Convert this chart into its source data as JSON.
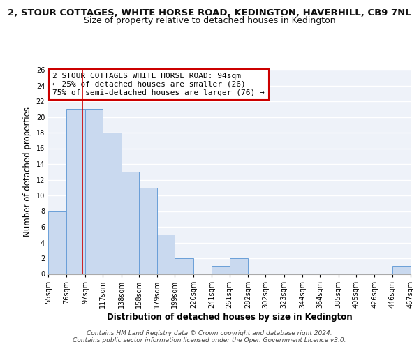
{
  "title_line1": "2, STOUR COTTAGES, WHITE HORSE ROAD, KEDINGTON, HAVERHILL, CB9 7NL",
  "title_line2": "Size of property relative to detached houses in Kedington",
  "xlabel": "Distribution of detached houses by size in Kedington",
  "ylabel": "Number of detached properties",
  "bar_edges": [
    55,
    76,
    97,
    117,
    138,
    158,
    179,
    199,
    220,
    241,
    261,
    282,
    302,
    323,
    344,
    364,
    385,
    405,
    426,
    446,
    467
  ],
  "bar_heights": [
    8,
    21,
    21,
    18,
    13,
    11,
    5,
    2,
    0,
    1,
    2,
    0,
    0,
    0,
    0,
    0,
    0,
    0,
    0,
    1
  ],
  "tick_labels": [
    "55sqm",
    "76sqm",
    "97sqm",
    "117sqm",
    "138sqm",
    "158sqm",
    "179sqm",
    "199sqm",
    "220sqm",
    "241sqm",
    "261sqm",
    "282sqm",
    "302sqm",
    "323sqm",
    "344sqm",
    "364sqm",
    "385sqm",
    "405sqm",
    "426sqm",
    "446sqm",
    "467sqm"
  ],
  "bar_color": "#c9d9ef",
  "bar_edge_color": "#6a9fd8",
  "vline_x": 94,
  "vline_color": "#cc0000",
  "ylim": [
    0,
    26
  ],
  "yticks": [
    0,
    2,
    4,
    6,
    8,
    10,
    12,
    14,
    16,
    18,
    20,
    22,
    24,
    26
  ],
  "annotation_line1": "2 STOUR COTTAGES WHITE HORSE ROAD: 94sqm",
  "annotation_line2": "← 25% of detached houses are smaller (26)",
  "annotation_line3": "75% of semi-detached houses are larger (76) →",
  "annotation_box_color": "#cc0000",
  "footer_line1": "Contains HM Land Registry data © Crown copyright and database right 2024.",
  "footer_line2": "Contains public sector information licensed under the Open Government Licence v3.0.",
  "bg_color": "#eef2f9",
  "grid_color": "#ffffff",
  "title_fontsize": 9.5,
  "subtitle_fontsize": 9,
  "axis_label_fontsize": 8.5,
  "tick_fontsize": 7,
  "annotation_fontsize": 8,
  "footer_fontsize": 6.5
}
